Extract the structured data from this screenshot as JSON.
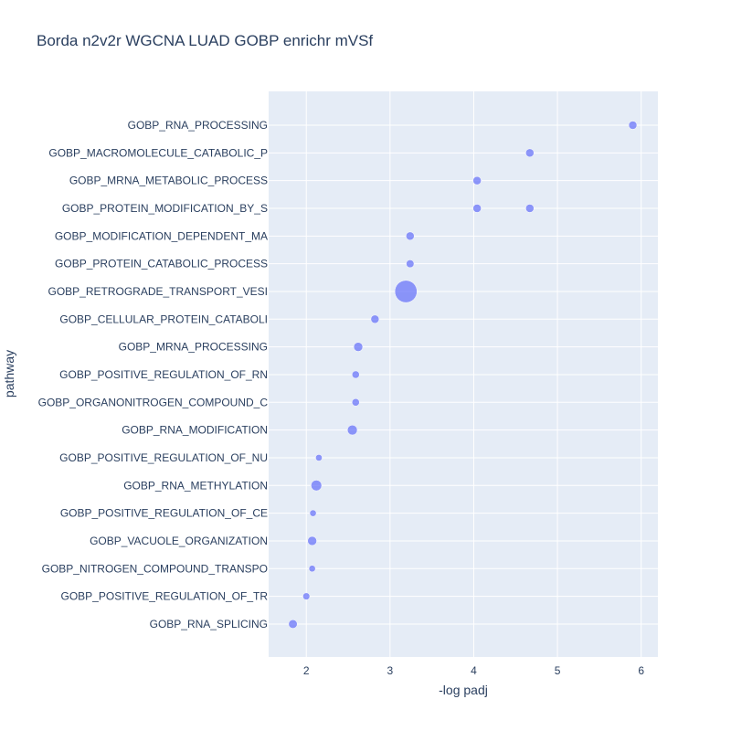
{
  "chart_data": {
    "type": "scatter",
    "title": "Borda n2v2r WGCNA LUAD GOBP enrichr mVSf",
    "xlabel": "-log padj",
    "ylabel": "pathway",
    "xlim": [
      1.55,
      6.2
    ],
    "x_ticks": [
      "2",
      "3",
      "4",
      "5",
      "6"
    ],
    "x_tick_values": [
      2,
      3,
      4,
      5,
      6
    ],
    "grid": true,
    "marker_color": "#636efa",
    "plot_bg": "#e5ecf6",
    "categories": [
      "GOBP_RNA_PROCESSING",
      "GOBP_MACROMOLECULE_CATABOLIC_P",
      "GOBP_MRNA_METABOLIC_PROCESS",
      "GOBP_PROTEIN_MODIFICATION_BY_S",
      "GOBP_MODIFICATION_DEPENDENT_MA",
      "GOBP_PROTEIN_CATABOLIC_PROCESS",
      "GOBP_RETROGRADE_TRANSPORT_VESI",
      "GOBP_CELLULAR_PROTEIN_CATABOLI",
      "GOBP_MRNA_PROCESSING",
      "GOBP_POSITIVE_REGULATION_OF_RN",
      "GOBP_ORGANONITROGEN_COMPOUND_C",
      "GOBP_RNA_MODIFICATION",
      "GOBP_POSITIVE_REGULATION_OF_NU",
      "GOBP_RNA_METHYLATION",
      "GOBP_POSITIVE_REGULATION_OF_CE",
      "GOBP_VACUOLE_ORGANIZATION",
      "GOBP_NITROGEN_COMPOUND_TRANSPO",
      "GOBP_POSITIVE_REGULATION_OF_TR",
      "GOBP_RNA_SPLICING"
    ],
    "points": [
      {
        "pathway": "GOBP_RNA_PROCESSING",
        "x": 5.9,
        "size": 1.0
      },
      {
        "pathway": "GOBP_MACROMOLECULE_CATABOLIC_P",
        "x": 4.67,
        "size": 1.0
      },
      {
        "pathway": "GOBP_MRNA_METABOLIC_PROCESS",
        "x": 4.04,
        "size": 1.0
      },
      {
        "pathway": "GOBP_PROTEIN_MODIFICATION_BY_S",
        "x": 4.04,
        "size": 1.0
      },
      {
        "pathway": "GOBP_PROTEIN_MODIFICATION_BY_S",
        "x": 4.67,
        "size": 1.0
      },
      {
        "pathway": "GOBP_MODIFICATION_DEPENDENT_MA",
        "x": 3.24,
        "size": 1.0
      },
      {
        "pathway": "GOBP_PROTEIN_CATABOLIC_PROCESS",
        "x": 3.24,
        "size": 0.95
      },
      {
        "pathway": "GOBP_RETROGRADE_TRANSPORT_VESI",
        "x": 3.19,
        "size": 2.7
      },
      {
        "pathway": "GOBP_CELLULAR_PROTEIN_CATABOLI",
        "x": 2.82,
        "size": 1.0
      },
      {
        "pathway": "GOBP_MRNA_PROCESSING",
        "x": 2.62,
        "size": 1.1
      },
      {
        "pathway": "GOBP_POSITIVE_REGULATION_OF_RN",
        "x": 2.59,
        "size": 0.9
      },
      {
        "pathway": "GOBP_ORGANONITROGEN_COMPOUND_C",
        "x": 2.59,
        "size": 0.9
      },
      {
        "pathway": "GOBP_RNA_MODIFICATION",
        "x": 2.55,
        "size": 1.2
      },
      {
        "pathway": "GOBP_POSITIVE_REGULATION_OF_NU",
        "x": 2.15,
        "size": 0.8
      },
      {
        "pathway": "GOBP_RNA_METHYLATION",
        "x": 2.12,
        "size": 1.3
      },
      {
        "pathway": "GOBP_POSITIVE_REGULATION_OF_CE",
        "x": 2.08,
        "size": 0.8
      },
      {
        "pathway": "GOBP_VACUOLE_ORGANIZATION",
        "x": 2.07,
        "size": 1.1
      },
      {
        "pathway": "GOBP_NITROGEN_COMPOUND_TRANSPO",
        "x": 2.07,
        "size": 0.8
      },
      {
        "pathway": "GOBP_POSITIVE_REGULATION_OF_TR",
        "x": 2.0,
        "size": 0.85
      },
      {
        "pathway": "GOBP_RNA_SPLICING",
        "x": 1.84,
        "size": 1.05
      }
    ]
  }
}
